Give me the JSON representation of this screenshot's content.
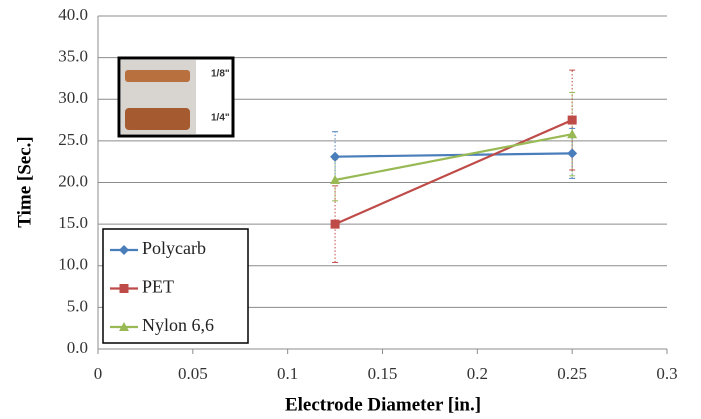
{
  "chart_data": {
    "type": "line",
    "xlabel": "Electrode Diameter [in.]",
    "ylabel": "Time [Sec.]",
    "x": [
      0.125,
      0.25
    ],
    "series": [
      {
        "name": "Polycarb",
        "color": "#4a7ebb",
        "marker": "diamond",
        "values": [
          23.1,
          23.5
        ],
        "errors": [
          3.0,
          3.0
        ]
      },
      {
        "name": "PET",
        "color": "#be4b48",
        "marker": "square",
        "values": [
          15.0,
          27.5
        ],
        "errors": [
          4.6,
          6.0
        ]
      },
      {
        "name": "Nylon 6,6",
        "color": "#98b954",
        "marker": "triangle",
        "values": [
          20.3,
          25.8
        ],
        "errors": [
          2.5,
          5.0
        ]
      }
    ],
    "xlim": [
      0,
      0.3
    ],
    "xticks": [
      0,
      0.05,
      0.1,
      0.15,
      0.2,
      0.25,
      0.3
    ],
    "ylim": [
      0,
      40
    ],
    "yticks": [
      {
        "value": 0,
        "label": "0.0"
      },
      {
        "value": 5,
        "label": "5.0"
      },
      {
        "value": 10,
        "label": "10.0"
      },
      {
        "value": 15,
        "label": "15.0"
      },
      {
        "value": 20,
        "label": "20.0"
      },
      {
        "value": 25,
        "label": "25.0"
      },
      {
        "value": 30,
        "label": "30.0"
      },
      {
        "value": 35,
        "label": "35.0"
      },
      {
        "value": 40,
        "label": "40.0"
      }
    ],
    "grid": true,
    "legend": "lower left",
    "inset_labels": [
      "1/8\"",
      "1/4\""
    ]
  }
}
